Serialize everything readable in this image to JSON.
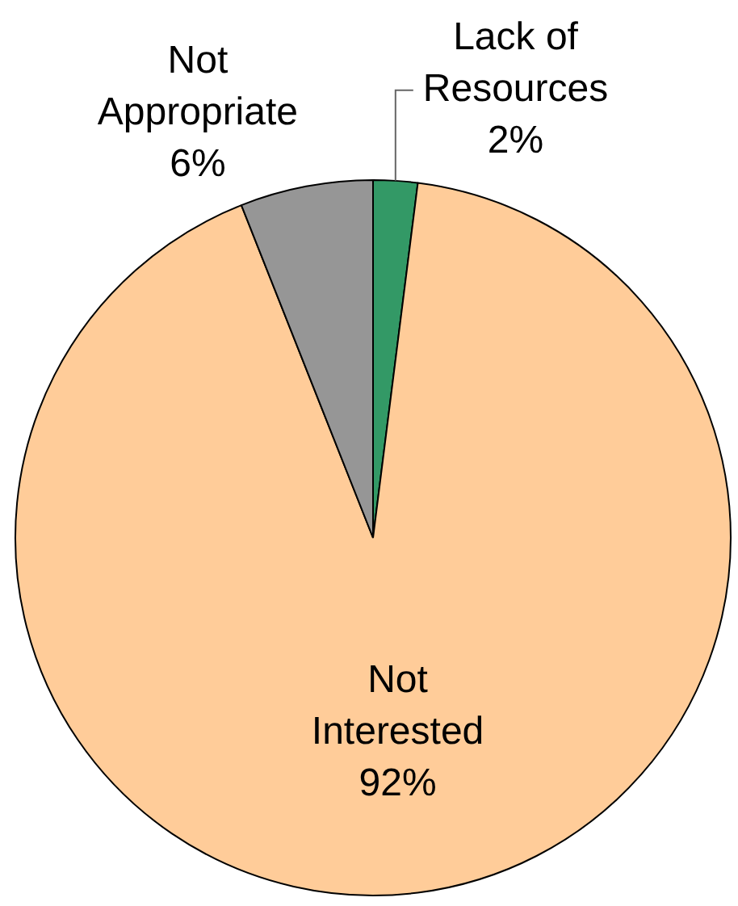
{
  "chart_data": {
    "type": "pie",
    "categories": [
      "Lack of Resources",
      "Not Interested",
      "Not Appropriate"
    ],
    "values": [
      2,
      92,
      6
    ],
    "colors": [
      "#339966",
      "#ffcc99",
      "#969696"
    ],
    "value_labels": [
      "2%",
      "92%",
      "6%"
    ],
    "legend": false
  }
}
